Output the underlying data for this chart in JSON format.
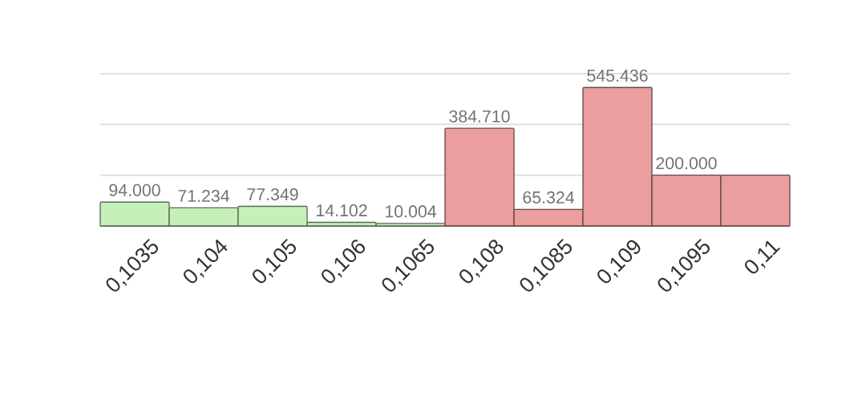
{
  "chart_data": {
    "type": "bar",
    "categories": [
      "0,1035",
      "0,104",
      "0,105",
      "0,106",
      "0,1065",
      "0,108",
      "0,1085",
      "0,109",
      "0,1095",
      "0,11"
    ],
    "values": [
      94000,
      71234,
      77349,
      14102,
      10004,
      384710,
      65324,
      545436,
      200000,
      200000
    ],
    "value_labels": [
      "94.000",
      "71.234",
      "77.349",
      "14.102",
      "10.004",
      "384.710",
      "65.324",
      "545.436",
      "200.000",
      null
    ],
    "colors": [
      "#c6f0b8",
      "#c6f0b8",
      "#c6f0b8",
      "#c6f0b8",
      "#c6f0b8",
      "#eb9e9e",
      "#eb9e9e",
      "#eb9e9e",
      "#eb9e9e",
      "#eb9e9e"
    ],
    "ylim": [
      0,
      600000
    ],
    "yticks": [
      {
        "value": 0,
        "label": null
      },
      {
        "value": 200000,
        "label": null
      },
      {
        "value": 400000,
        "label": null
      },
      {
        "value": 600000,
        "label": null
      }
    ],
    "grid": "y",
    "tick_labels": "x"
  }
}
